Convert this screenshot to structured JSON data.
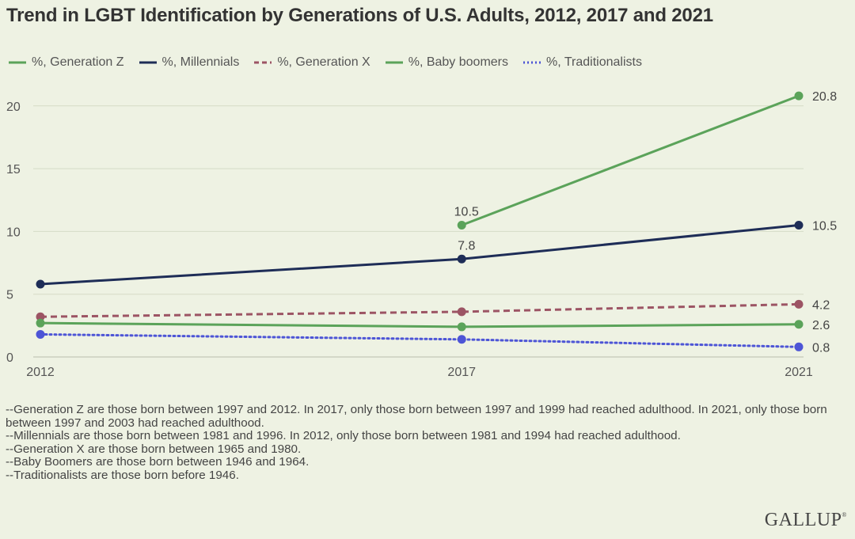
{
  "title": "Trend in LGBT Identification by Generations of U.S. Adults, 2012, 2017 and 2021",
  "logo": "GALLUP",
  "logo_mark": "®",
  "colors": {
    "background": "#eef2e3",
    "grid": "#d5dbc6",
    "gen_z": "#5ba35a",
    "millennials": "#1e2d57",
    "gen_x": "#9c5464",
    "boomers": "#5ba35a",
    "traditionalists": "#4d55d6"
  },
  "chart_data": {
    "type": "line",
    "title": "Trend in LGBT Identification by Generations of U.S. Adults, 2012, 2017 and 2021",
    "x": [
      2012,
      2017,
      2021
    ],
    "x_tick_labels": [
      "2012",
      "2017",
      "2021"
    ],
    "y_ticks": [
      0,
      5,
      10,
      15,
      20
    ],
    "y_tick_labels": [
      "0",
      "5",
      "10",
      "15",
      "20"
    ],
    "ylim": [
      0,
      21.5
    ],
    "grid": true,
    "legend_position": "top-left",
    "series": [
      {
        "key": "gen_x",
        "name": "%, Generation X",
        "style": "dashed",
        "color": "#9c5464",
        "values": [
          3.2,
          3.6,
          4.2
        ]
      },
      {
        "key": "boomers",
        "name": "%, Baby boomers",
        "style": "solid",
        "color": "#5ba35a",
        "values": [
          2.7,
          2.4,
          2.6
        ]
      },
      {
        "key": "traditionalists",
        "name": "%, Traditionalists",
        "style": "dotted",
        "color": "#4d55d6",
        "values": [
          1.8,
          1.4,
          0.8
        ]
      },
      {
        "key": "millennials",
        "name": "%, Millennials",
        "style": "solid",
        "color": "#1e2d57",
        "values": [
          5.8,
          7.8,
          10.5
        ]
      },
      {
        "key": "gen_z",
        "name": "%, Generation Z",
        "style": "solid",
        "color": "#5ba35a",
        "values": [
          null,
          10.5,
          20.8
        ]
      }
    ],
    "legend_order": [
      "gen_z",
      "millennials",
      "gen_x",
      "boomers",
      "traditionalists"
    ],
    "data_labels": [
      {
        "series": "gen_z",
        "x": 2017,
        "text": "10.5",
        "position": "above"
      },
      {
        "series": "millennials",
        "x": 2017,
        "text": "7.8",
        "position": "above"
      },
      {
        "series": "gen_z",
        "x": 2021,
        "text": "20.8",
        "position": "right"
      },
      {
        "series": "millennials",
        "x": 2021,
        "text": "10.5",
        "position": "right"
      },
      {
        "series": "gen_x",
        "x": 2021,
        "text": "4.2",
        "position": "right"
      },
      {
        "series": "boomers",
        "x": 2021,
        "text": "2.6",
        "position": "right"
      },
      {
        "series": "traditionalists",
        "x": 2021,
        "text": "0.8",
        "position": "right"
      }
    ]
  },
  "notes": [
    "--Generation Z are those born between 1997 and 2012. In 2017, only those born between 1997 and 1999 had reached adulthood. In 2021, only those born between 1997 and 2003 had reached adulthood.",
    "--Millennials are those born between 1981 and 1996. In 2012, only those born between 1981 and 1994 had reached adulthood.",
    "--Generation X are those born between 1965 and 1980.",
    "--Baby Boomers are those born between 1946 and 1964.",
    "--Traditionalists are those born before 1946."
  ]
}
